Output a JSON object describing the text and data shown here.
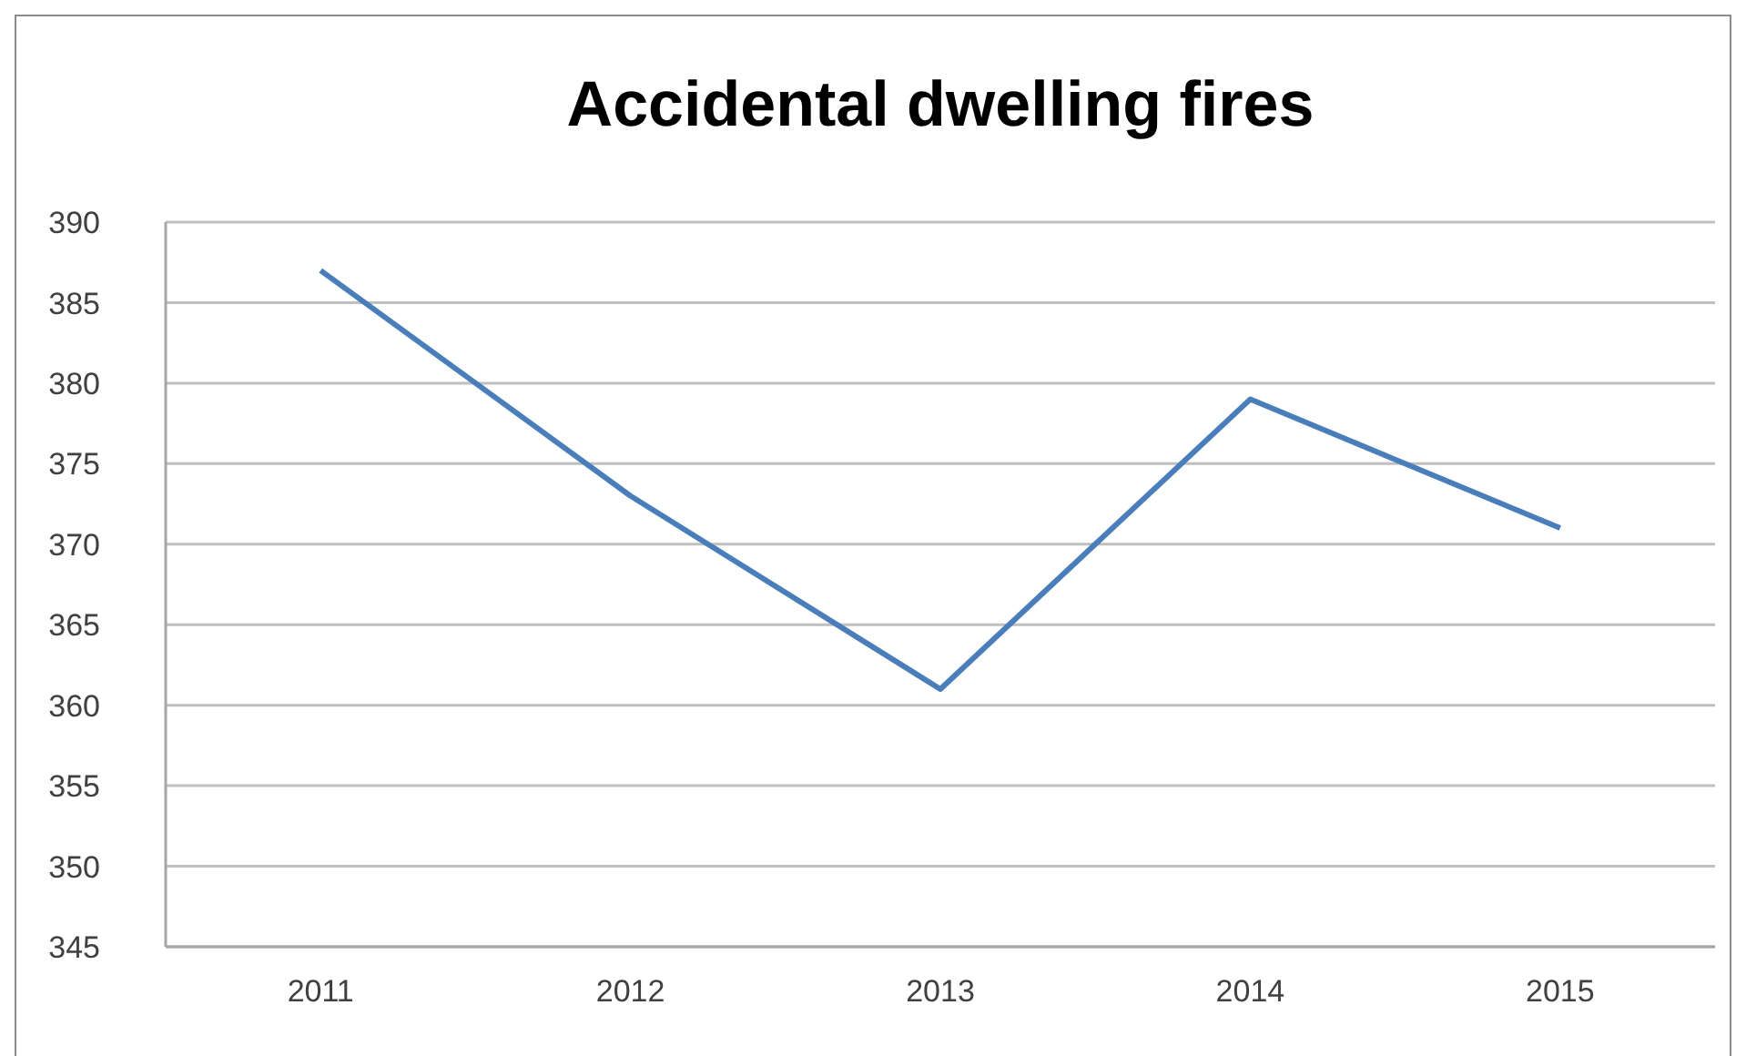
{
  "chart_data": {
    "type": "line",
    "title": "Accidental dwelling fires",
    "categories": [
      "2011",
      "2012",
      "2013",
      "2014",
      "2015"
    ],
    "series": [
      {
        "color": "#4a7ebb",
        "values": [
          387,
          373,
          361,
          379,
          371
        ]
      }
    ],
    "ylim": [
      345,
      390
    ],
    "yticks": [
      345,
      350,
      355,
      360,
      365,
      370,
      375,
      380,
      385,
      390
    ],
    "grid": "y",
    "marker": "none",
    "line_style": "solid"
  }
}
